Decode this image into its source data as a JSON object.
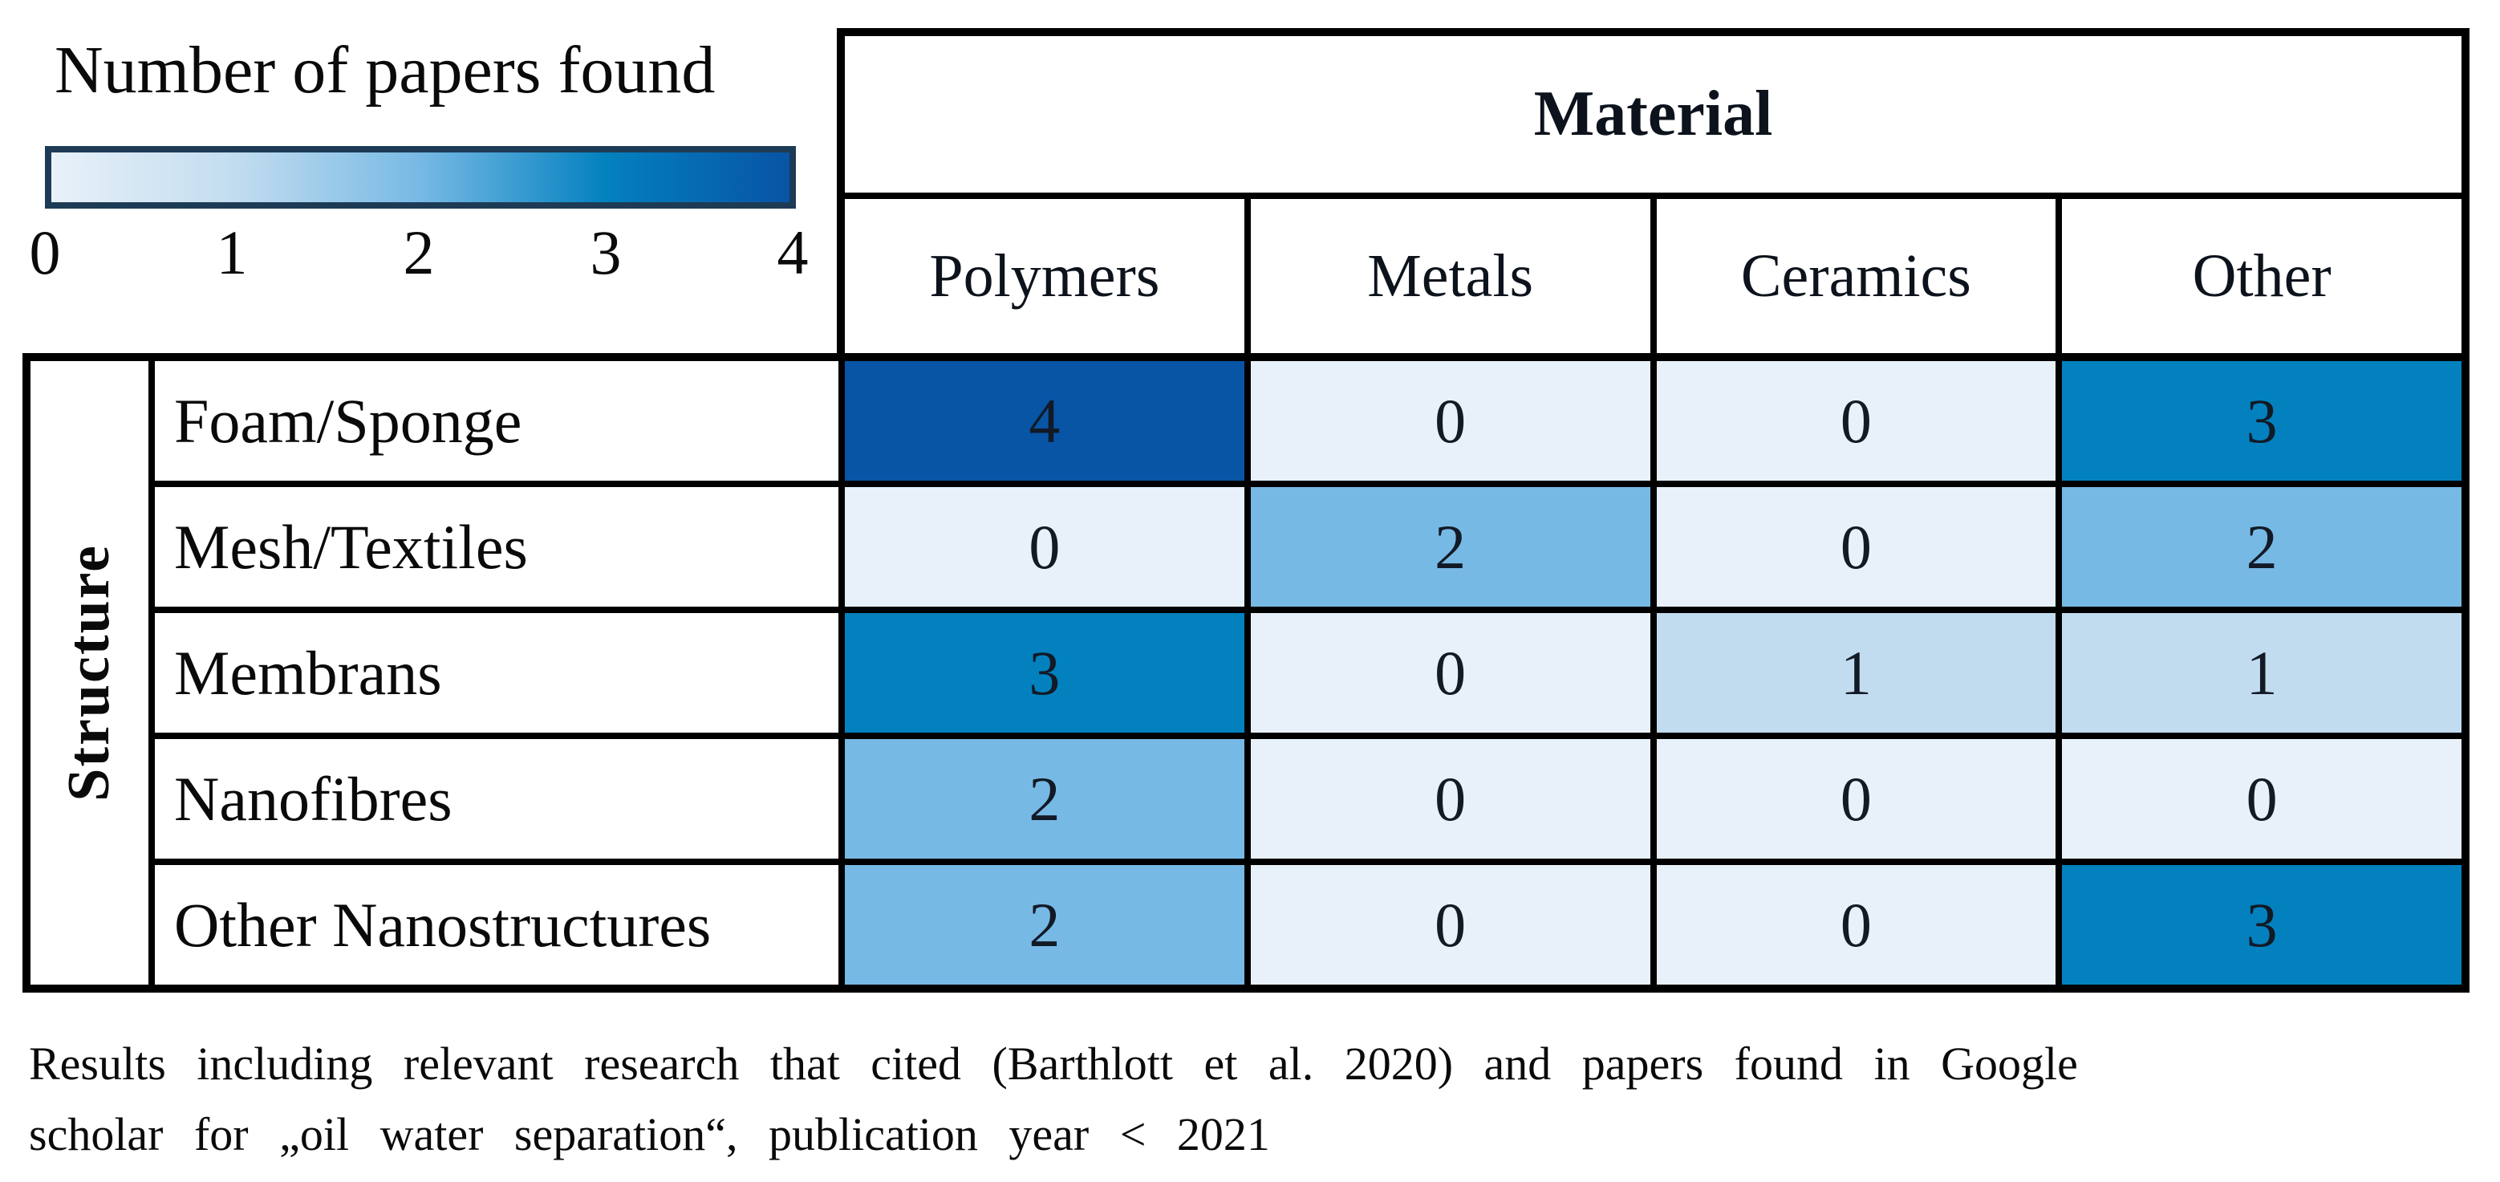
{
  "legend": {
    "title": "Number of papers found",
    "ticks": [
      "0",
      "1",
      "2",
      "3",
      "4"
    ],
    "value_colors": {
      "0": "#e8f1f9",
      "1": "#c2dcef",
      "2": "#77b9e5",
      "3": "#0381bf",
      "4": "#0854a5"
    },
    "bar_border_color": "#1d3b55"
  },
  "table": {
    "column_group_label": "Material",
    "row_group_label": "Structure",
    "columns": [
      "Polymers",
      "Metals",
      "Ceramics",
      "Other"
    ],
    "rows": [
      {
        "label": "Foam/Sponge",
        "values": [
          4,
          0,
          0,
          3
        ]
      },
      {
        "label": "Mesh/Textiles",
        "values": [
          0,
          2,
          0,
          2
        ]
      },
      {
        "label": "Membrans",
        "values": [
          3,
          0,
          1,
          1
        ]
      },
      {
        "label": "Nanofibres",
        "values": [
          2,
          0,
          0,
          0
        ]
      },
      {
        "label": "Other Nanostructures",
        "values": [
          2,
          0,
          0,
          3
        ]
      }
    ]
  },
  "caption": {
    "line1": "Results including relevant research that cited (Barthlott et al. 2020) and papers found in Google",
    "line2": "scholar for „oil water separation“, publication year < 2021"
  },
  "chart_data": {
    "type": "heatmap",
    "title": "Number of papers found",
    "x_axis_label": "Material",
    "y_axis_label": "Structure",
    "x_categories": [
      "Polymers",
      "Metals",
      "Ceramics",
      "Other"
    ],
    "y_categories": [
      "Foam/Sponge",
      "Mesh/Textiles",
      "Membrans",
      "Nanofibres",
      "Other Nanostructures"
    ],
    "values": [
      [
        4,
        0,
        0,
        3
      ],
      [
        0,
        2,
        0,
        2
      ],
      [
        3,
        0,
        1,
        1
      ],
      [
        2,
        0,
        0,
        0
      ],
      [
        2,
        0,
        0,
        3
      ]
    ],
    "colorbar": {
      "label": "Number of papers found",
      "min": 0,
      "max": 4,
      "ticks": [
        0,
        1,
        2,
        3,
        4
      ],
      "colors": [
        "#e8f1f9",
        "#c2dcef",
        "#77b9e5",
        "#0381bf",
        "#0854a5"
      ],
      "position": "top-left"
    },
    "caption": "Results including relevant research that cited (Barthlott et al. 2020) and papers found in Google scholar for „oil water separation“, publication year < 2021"
  }
}
